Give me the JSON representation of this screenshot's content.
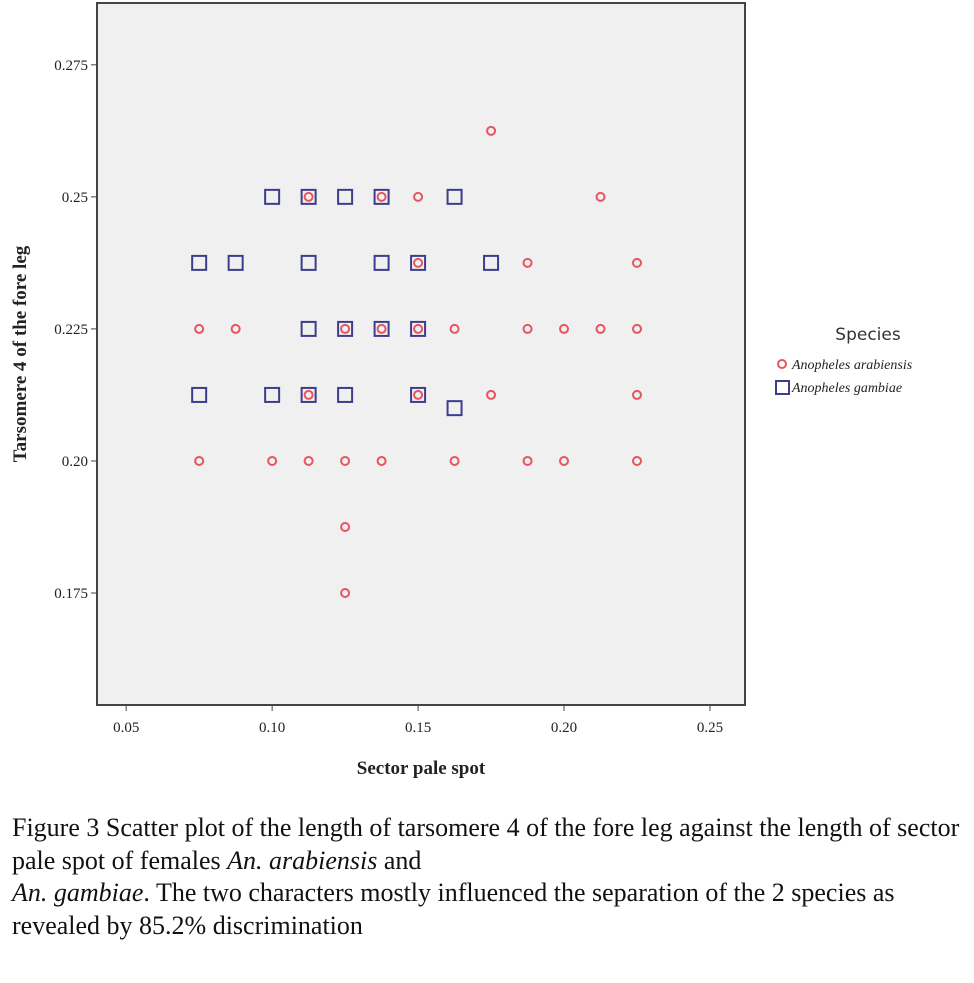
{
  "chart_data": {
    "type": "scatter",
    "xlabel": "Sector pale spot",
    "ylabel": "Tarsomere 4 of the fore leg",
    "xlim": [
      0.04,
      0.262
    ],
    "ylim": [
      0.1538,
      0.2867
    ],
    "xticks": [
      0.05,
      0.1,
      0.15,
      0.2,
      0.25
    ],
    "xtick_labels": [
      "0.05",
      "0.10",
      "0.15",
      "0.20",
      "0.25"
    ],
    "yticks": [
      0.175,
      0.2,
      0.225,
      0.25,
      0.275
    ],
    "ytick_labels": [
      "0.175",
      "0.20",
      "0.225",
      "0.25",
      "0.275"
    ],
    "grid": false,
    "legend": {
      "title": "Species",
      "placement": "right"
    },
    "series": [
      {
        "name": "Anopheles gambiae",
        "marker": "square",
        "color": "#3d3d8c",
        "points": [
          [
            0.1,
            0.25
          ],
          [
            0.1125,
            0.25
          ],
          [
            0.125,
            0.25
          ],
          [
            0.1375,
            0.25
          ],
          [
            0.1625,
            0.25
          ],
          [
            0.075,
            0.2375
          ],
          [
            0.0875,
            0.2375
          ],
          [
            0.1125,
            0.2375
          ],
          [
            0.1375,
            0.2375
          ],
          [
            0.15,
            0.2375
          ],
          [
            0.175,
            0.2375
          ],
          [
            0.1125,
            0.225
          ],
          [
            0.125,
            0.225
          ],
          [
            0.1375,
            0.225
          ],
          [
            0.15,
            0.225
          ],
          [
            0.075,
            0.2125
          ],
          [
            0.1,
            0.2125
          ],
          [
            0.1125,
            0.2125
          ],
          [
            0.125,
            0.2125
          ],
          [
            0.15,
            0.2125
          ],
          [
            0.1625,
            0.21
          ]
        ]
      },
      {
        "name": "Anopheles arabiensis",
        "marker": "circle",
        "color": "#e85560",
        "points": [
          [
            0.175,
            0.2625
          ],
          [
            0.1125,
            0.25
          ],
          [
            0.1375,
            0.25
          ],
          [
            0.15,
            0.25
          ],
          [
            0.2125,
            0.25
          ],
          [
            0.15,
            0.2375
          ],
          [
            0.1875,
            0.2375
          ],
          [
            0.225,
            0.2375
          ],
          [
            0.075,
            0.225
          ],
          [
            0.0875,
            0.225
          ],
          [
            0.125,
            0.225
          ],
          [
            0.1375,
            0.225
          ],
          [
            0.15,
            0.225
          ],
          [
            0.1625,
            0.225
          ],
          [
            0.1875,
            0.225
          ],
          [
            0.2,
            0.225
          ],
          [
            0.2125,
            0.225
          ],
          [
            0.225,
            0.225
          ],
          [
            0.1125,
            0.2125
          ],
          [
            0.15,
            0.2125
          ],
          [
            0.175,
            0.2125
          ],
          [
            0.225,
            0.2125
          ],
          [
            0.075,
            0.2
          ],
          [
            0.1,
            0.2
          ],
          [
            0.1125,
            0.2
          ],
          [
            0.125,
            0.2
          ],
          [
            0.1375,
            0.2
          ],
          [
            0.1625,
            0.2
          ],
          [
            0.1875,
            0.2
          ],
          [
            0.2,
            0.2
          ],
          [
            0.225,
            0.2
          ],
          [
            0.125,
            0.1875
          ],
          [
            0.125,
            0.175
          ]
        ]
      }
    ]
  },
  "caption": {
    "part1": "Figure 3 Scatter plot of the length of tarsomere 4 of the fore leg against the length of sector pale spot of females ",
    "species1": "An. arabiensis",
    "part2": " and ",
    "species2": "An. gambiae",
    "part3": ". The two characters mostly influenced the separation of the 2 species as revealed by 85.2% discrimination"
  }
}
